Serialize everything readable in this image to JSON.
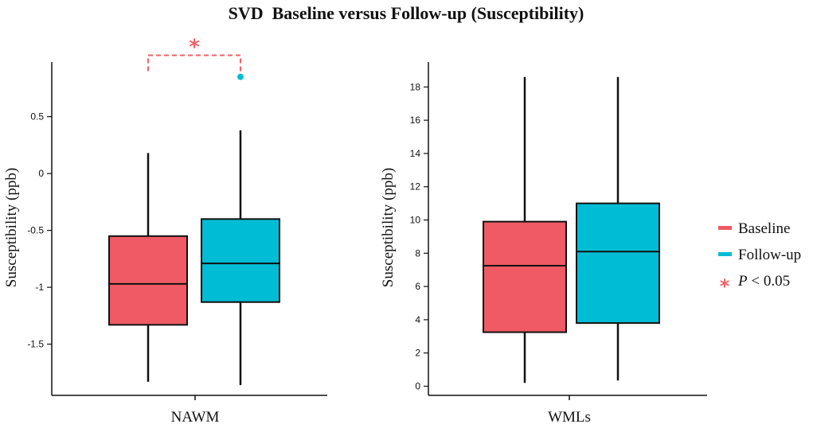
{
  "chart_data": {
    "type": "boxplot",
    "title": "SVD  Baseline versus Follow-up (Susceptibility)",
    "legend_position": "right",
    "legend": [
      {
        "label": "Baseline",
        "color": "#ef5a64"
      },
      {
        "label": "Follow-up",
        "color": "#00bcd4"
      }
    ],
    "significance_legend": {
      "symbol": "*",
      "label_italic": "P",
      "label_rest": " < 0.05",
      "color": "#f0626a"
    },
    "panels": [
      {
        "category": "NAWM",
        "ylabel": "Susceptibility (ppb)",
        "ylim": [
          -1.95,
          0.98
        ],
        "yticks": [
          0.5,
          0,
          -0.5,
          -1,
          -1.5
        ],
        "ytick_labels": [
          "0.5",
          "0",
          "-0.5",
          "-1",
          "-1.5"
        ],
        "series": [
          {
            "name": "Baseline",
            "color": "#ef5a64",
            "whisker_low": -1.83,
            "q1": -1.33,
            "median": -0.97,
            "q3": -0.55,
            "whisker_high": 0.18,
            "outliers": []
          },
          {
            "name": "Follow-up",
            "color": "#00bcd4",
            "whisker_low": -1.86,
            "q1": -1.13,
            "median": -0.79,
            "q3": -0.4,
            "whisker_high": 0.38,
            "outliers": [
              0.85
            ]
          }
        ],
        "significance": {
          "symbol": "*",
          "y": 0.9,
          "color": "#f0626a"
        }
      },
      {
        "category": "WMLs",
        "ylabel": "Susceptibility (ppb)",
        "ylim": [
          -0.55,
          19.5
        ],
        "yticks": [
          0,
          2,
          4,
          6,
          8,
          10,
          12,
          14,
          16,
          18
        ],
        "ytick_labels": [
          "0",
          "2",
          "4",
          "6",
          "8",
          "10",
          "12",
          "14",
          "16",
          "18"
        ],
        "series": [
          {
            "name": "Baseline",
            "color": "#ef5a64",
            "whisker_low": 0.2,
            "q1": 3.25,
            "median": 7.25,
            "q3": 9.9,
            "whisker_high": 18.6,
            "outliers": []
          },
          {
            "name": "Follow-up",
            "color": "#00bcd4",
            "whisker_low": 0.35,
            "q1": 3.8,
            "median": 8.1,
            "q3": 11.0,
            "whisker_high": 18.6,
            "outliers": []
          }
        ],
        "significance": null
      }
    ]
  }
}
